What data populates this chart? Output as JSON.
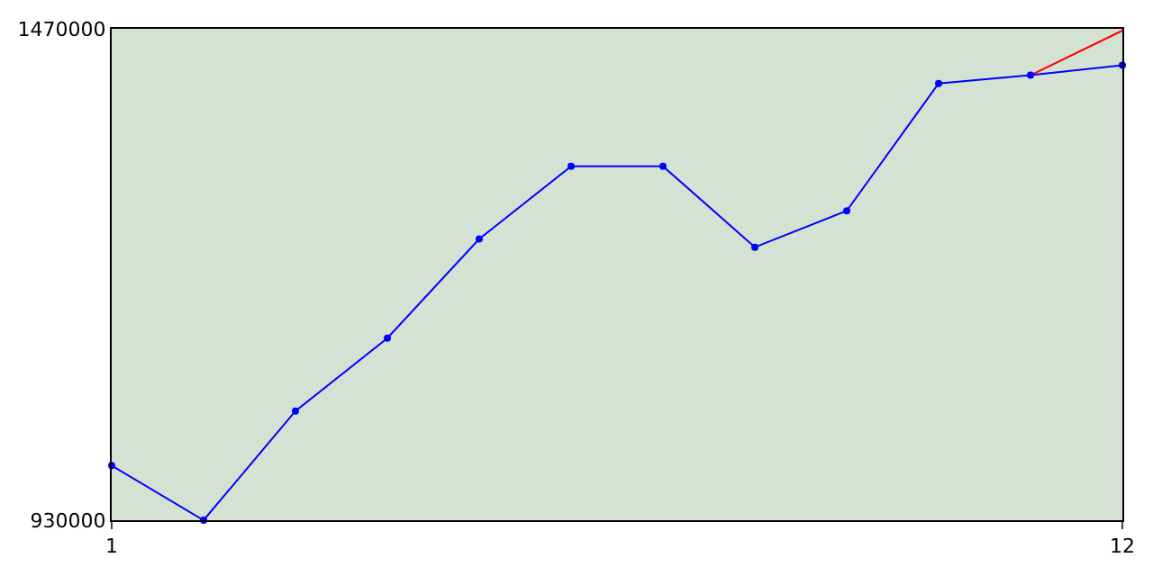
{
  "chart_data": {
    "type": "line",
    "x": [
      1,
      2,
      3,
      4,
      5,
      6,
      7,
      8,
      9,
      10,
      11,
      12
    ],
    "series": [
      {
        "color": "#ff0000",
        "marker": "none",
        "values": [
          null,
          null,
          null,
          null,
          null,
          null,
          null,
          null,
          null,
          null,
          1419000,
          1468000
        ]
      },
      {
        "color": "#0000ff",
        "marker": "circle",
        "values": [
          990000,
          930000,
          1050000,
          1130000,
          1239000,
          1319000,
          1319000,
          1230000,
          1270000,
          1410000,
          1419000,
          1430000
        ]
      }
    ],
    "xlim": [
      1,
      12
    ],
    "xticks": [
      1,
      12
    ],
    "ylim": [
      930000,
      1470000
    ],
    "yticks": [
      930000,
      1470000
    ]
  }
}
